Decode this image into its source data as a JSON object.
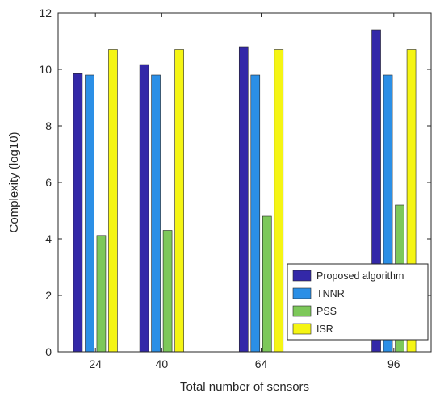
{
  "chart_data": {
    "type": "bar",
    "xlabel": "Total number of sensors",
    "ylabel": "Complexity (log10)",
    "x": [
      24,
      40,
      64,
      96
    ],
    "xlim": [
      15,
      105
    ],
    "ylim": [
      0,
      12
    ],
    "yticks": [
      0,
      2,
      4,
      6,
      8,
      10,
      12
    ],
    "grid": false,
    "legend_position": "bottom-right",
    "series": [
      {
        "name": "Proposed algorithm",
        "color": "#3328a8",
        "values": [
          9.85,
          10.17,
          10.8,
          11.4
        ]
      },
      {
        "name": "TNNR",
        "color": "#2b8fe6",
        "values": [
          9.8,
          9.8,
          9.8,
          9.8
        ]
      },
      {
        "name": "PSS",
        "color": "#7dc85a",
        "values": [
          4.12,
          4.3,
          4.8,
          5.2
        ]
      },
      {
        "name": "ISR",
        "color": "#f5f514",
        "values": [
          10.7,
          10.7,
          10.7,
          10.7
        ]
      }
    ]
  }
}
